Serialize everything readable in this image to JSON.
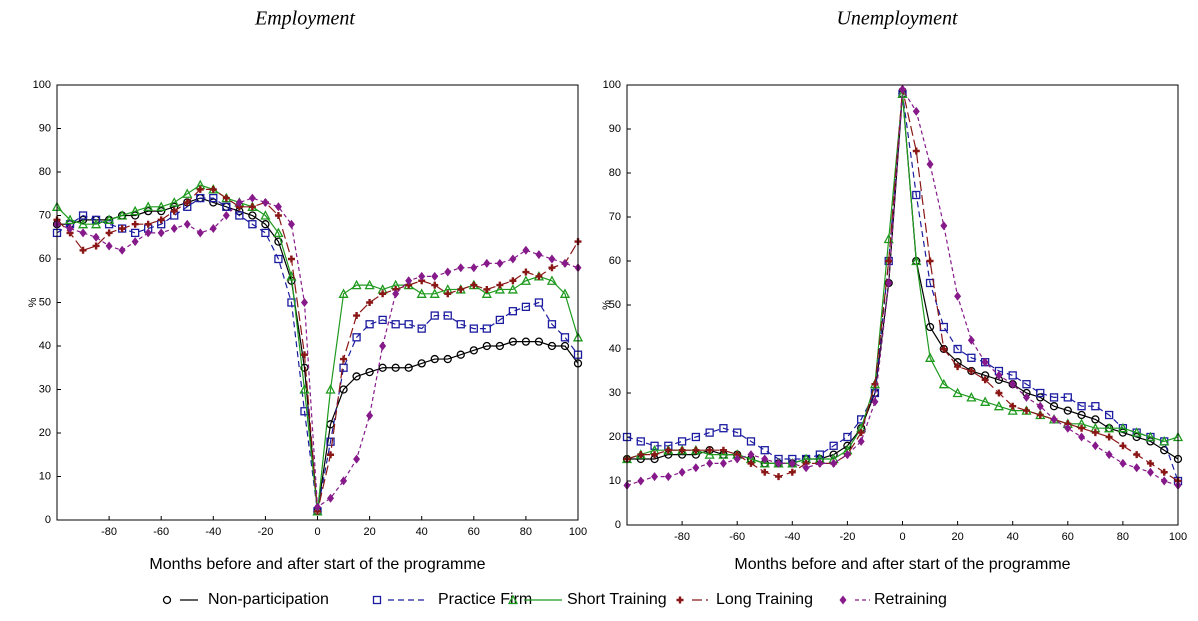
{
  "chart_data": [
    {
      "type": "line",
      "title": "Employment",
      "xlabel": "Months before and after start of the programme",
      "ylabel": "%",
      "xlim": [
        -100,
        100
      ],
      "ylim": [
        0,
        100
      ],
      "xticks": [
        -80,
        -60,
        -40,
        -20,
        0,
        20,
        40,
        60,
        80,
        100
      ],
      "yticks": [
        0,
        10,
        20,
        30,
        40,
        50,
        60,
        70,
        80,
        90,
        100
      ],
      "x": [
        -100,
        -95,
        -90,
        -85,
        -80,
        -75,
        -70,
        -65,
        -60,
        -55,
        -50,
        -45,
        -40,
        -35,
        -30,
        -25,
        -20,
        -15,
        -10,
        -5,
        0,
        5,
        10,
        15,
        20,
        25,
        30,
        35,
        40,
        45,
        50,
        55,
        60,
        65,
        70,
        75,
        80,
        85,
        90,
        95,
        100
      ],
      "series": [
        {
          "name": "Non-participation",
          "color": "#000000",
          "marker": "circle",
          "dash": "solid",
          "values": [
            68,
            68,
            69,
            69,
            69,
            70,
            70,
            71,
            71,
            72,
            73,
            74,
            73,
            72,
            71,
            70,
            68,
            64,
            55,
            35,
            2,
            22,
            30,
            33,
            34,
            35,
            35,
            35,
            36,
            37,
            37,
            38,
            39,
            40,
            40,
            41,
            41,
            41,
            40,
            40,
            36
          ]
        },
        {
          "name": "Practice Firm",
          "color": "#1c1ca0",
          "marker": "square",
          "dash": "dashed",
          "values": [
            66,
            68,
            70,
            69,
            68,
            67,
            66,
            67,
            68,
            70,
            72,
            74,
            74,
            72,
            70,
            68,
            66,
            60,
            50,
            25,
            2,
            18,
            35,
            42,
            45,
            46,
            45,
            45,
            44,
            47,
            47,
            45,
            44,
            44,
            46,
            48,
            49,
            50,
            45,
            42,
            38
          ]
        },
        {
          "name": "Short Training",
          "color": "#1f9a1f",
          "marker": "triangle",
          "dash": "solid",
          "values": [
            72,
            69,
            68,
            68,
            69,
            70,
            71,
            72,
            72,
            73,
            75,
            77,
            76,
            74,
            73,
            72,
            70,
            66,
            56,
            30,
            2,
            30,
            52,
            54,
            54,
            53,
            54,
            54,
            52,
            52,
            53,
            53,
            54,
            52,
            53,
            53,
            55,
            56,
            55,
            52,
            42
          ]
        },
        {
          "name": "Long Training",
          "color": "#8a1616",
          "marker": "plus",
          "dash": "longdash",
          "values": [
            69,
            66,
            62,
            63,
            66,
            67,
            68,
            68,
            69,
            71,
            73,
            76,
            76,
            74,
            72,
            72,
            73,
            70,
            60,
            38,
            2,
            15,
            37,
            47,
            50,
            52,
            53,
            54,
            55,
            54,
            52,
            53,
            54,
            53,
            54,
            55,
            57,
            56,
            58,
            59,
            64
          ]
        },
        {
          "name": "Retraining",
          "color": "#861a8a",
          "marker": "diamond",
          "dash": "dotted",
          "values": [
            68,
            67,
            66,
            65,
            63,
            62,
            64,
            66,
            66,
            67,
            68,
            66,
            67,
            70,
            73,
            74,
            73,
            72,
            68,
            50,
            3,
            5,
            9,
            14,
            24,
            40,
            52,
            55,
            56,
            56,
            57,
            58,
            58,
            59,
            59,
            60,
            62,
            61,
            60,
            59,
            58
          ]
        }
      ]
    },
    {
      "type": "line",
      "title": "Unemployment",
      "xlabel": "Months before and after start of the programme",
      "ylabel": "%",
      "xlim": [
        -100,
        100
      ],
      "ylim": [
        0,
        100
      ],
      "xticks": [
        -80,
        -60,
        -40,
        -20,
        0,
        20,
        40,
        60,
        80,
        100
      ],
      "yticks": [
        0,
        10,
        20,
        30,
        40,
        50,
        60,
        70,
        80,
        90,
        100
      ],
      "x": [
        -100,
        -95,
        -90,
        -85,
        -80,
        -75,
        -70,
        -65,
        -60,
        -55,
        -50,
        -45,
        -40,
        -35,
        -30,
        -25,
        -20,
        -15,
        -10,
        -5,
        0,
        5,
        10,
        15,
        20,
        25,
        30,
        35,
        40,
        45,
        50,
        55,
        60,
        65,
        70,
        75,
        80,
        85,
        90,
        95,
        100
      ],
      "series": [
        {
          "color": "#000000",
          "marker": "circle",
          "dash": "solid",
          "values": [
            15,
            15,
            15,
            16,
            16,
            16,
            17,
            16,
            16,
            15,
            14,
            14,
            14,
            15,
            15,
            16,
            18,
            22,
            30,
            55,
            98,
            60,
            45,
            40,
            37,
            35,
            34,
            33,
            32,
            30,
            29,
            27,
            26,
            25,
            24,
            22,
            21,
            20,
            19,
            17,
            15
          ]
        },
        {
          "color": "#1c1ca0",
          "marker": "square",
          "dash": "dashed",
          "values": [
            20,
            19,
            18,
            18,
            19,
            20,
            21,
            22,
            21,
            19,
            17,
            15,
            15,
            15,
            16,
            18,
            20,
            24,
            30,
            60,
            98,
            75,
            55,
            45,
            40,
            38,
            37,
            35,
            34,
            32,
            30,
            29,
            29,
            27,
            27,
            25,
            22,
            21,
            20,
            19,
            10
          ]
        },
        {
          "color": "#1f9a1f",
          "marker": "triangle",
          "dash": "solid",
          "values": [
            15,
            16,
            17,
            17,
            17,
            17,
            16,
            16,
            16,
            15,
            14,
            14,
            14,
            15,
            15,
            15,
            17,
            22,
            32,
            65,
            98,
            60,
            38,
            32,
            30,
            29,
            28,
            27,
            26,
            26,
            25,
            24,
            23,
            23,
            22,
            22,
            22,
            21,
            20,
            19,
            20
          ]
        },
        {
          "color": "#8a1616",
          "marker": "plus",
          "dash": "longdash",
          "values": [
            15,
            16,
            16,
            17,
            17,
            17,
            17,
            17,
            16,
            14,
            12,
            11,
            12,
            14,
            14,
            14,
            16,
            21,
            32,
            60,
            99,
            85,
            60,
            40,
            36,
            35,
            33,
            30,
            27,
            26,
            25,
            24,
            23,
            22,
            21,
            20,
            18,
            16,
            14,
            12,
            10
          ]
        },
        {
          "color": "#861a8a",
          "marker": "diamond",
          "dash": "dotted",
          "values": [
            9,
            10,
            11,
            11,
            12,
            13,
            14,
            14,
            15,
            16,
            15,
            14,
            14,
            13,
            14,
            14,
            16,
            19,
            28,
            55,
            99,
            94,
            82,
            68,
            52,
            42,
            37,
            34,
            32,
            29,
            27,
            24,
            22,
            20,
            18,
            16,
            14,
            13,
            12,
            10,
            9
          ]
        }
      ]
    }
  ]
}
